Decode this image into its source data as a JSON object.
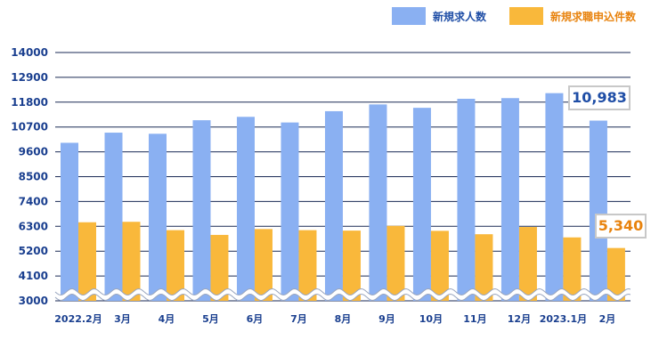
{
  "legend": {
    "series1_label": "新規求人数",
    "series2_label": "新規求職申込件数"
  },
  "colors": {
    "series1": "#8ab0f2",
    "series2": "#f9b83b",
    "series1_label": "#1f4ea6",
    "series2_label": "#e8830e",
    "axis_text": "#1a3f8f",
    "grid": "#1a2a55"
  },
  "callouts": {
    "series1_last": "10,983",
    "series2_last": "5,340"
  },
  "chart_data": {
    "type": "bar",
    "categories": [
      "2022.2月",
      "3月",
      "4月",
      "5月",
      "6月",
      "7月",
      "8月",
      "9月",
      "10月",
      "11月",
      "12月",
      "2023.1月",
      "2月"
    ],
    "series": [
      {
        "name": "新規求人数",
        "values": [
          10000,
          10450,
          10400,
          11000,
          11150,
          10900,
          11400,
          11700,
          11550,
          11950,
          11980,
          12200,
          10983
        ]
      },
      {
        "name": "新規求職申込件数",
        "values": [
          6480,
          6500,
          6130,
          5920,
          6180,
          6130,
          6110,
          6320,
          6100,
          5950,
          6270,
          5810,
          5340
        ]
      }
    ],
    "yticks": [
      3000,
      4100,
      5200,
      6300,
      7400,
      8500,
      9600,
      10700,
      11800,
      12900,
      14000
    ],
    "ylim": [
      3000,
      14000
    ],
    "axis_break": true,
    "grid": true,
    "legend_position": "top-right"
  }
}
